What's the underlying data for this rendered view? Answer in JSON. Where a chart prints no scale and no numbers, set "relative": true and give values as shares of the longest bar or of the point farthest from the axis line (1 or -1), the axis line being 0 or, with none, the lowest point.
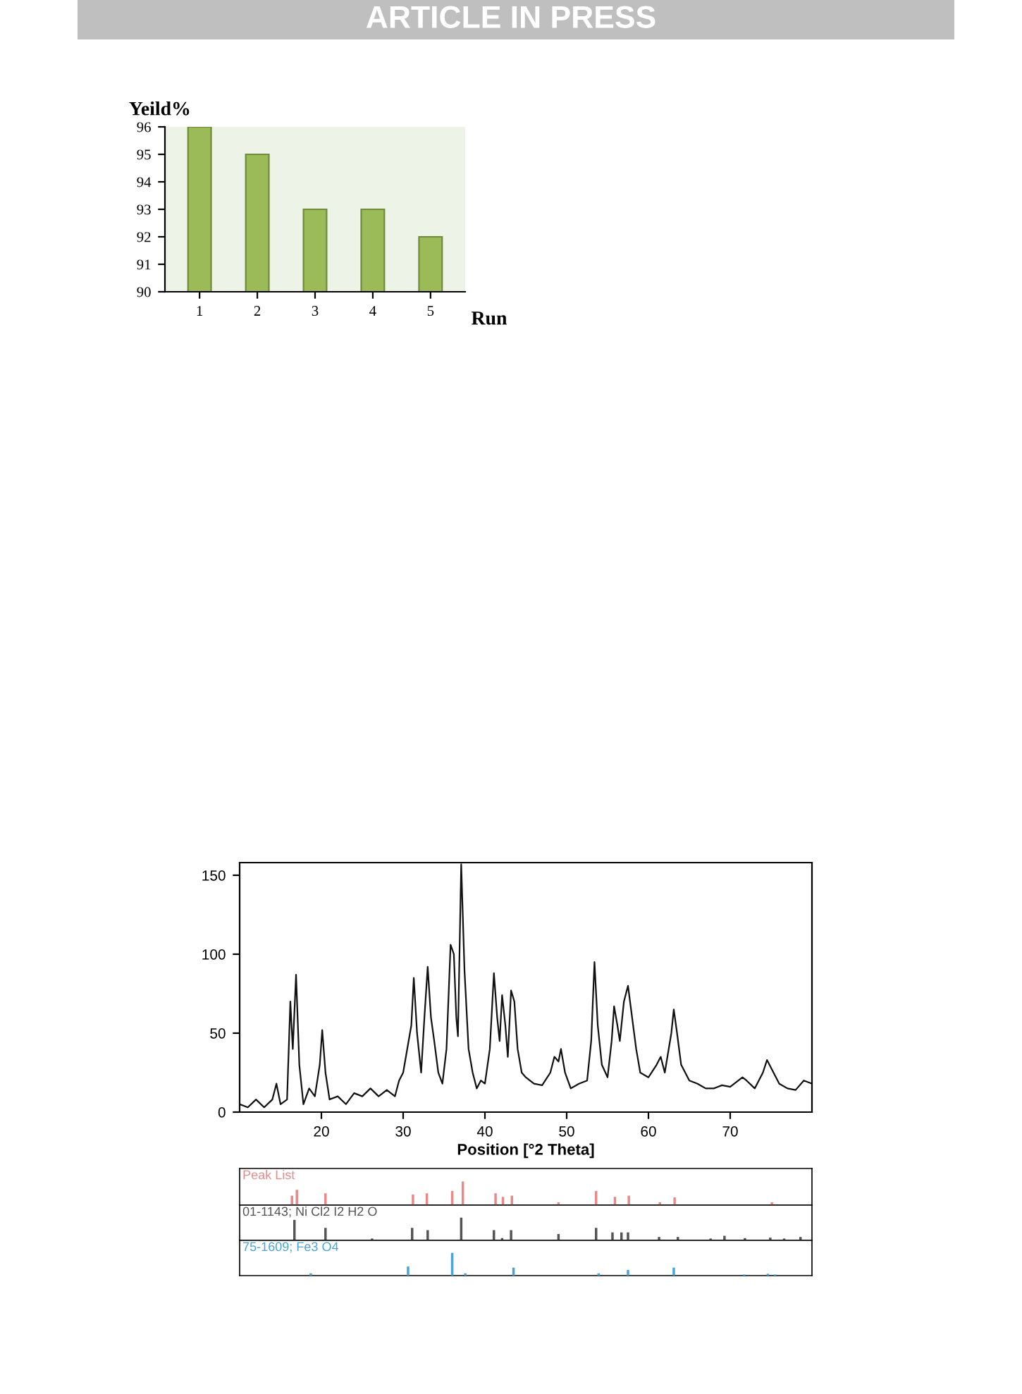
{
  "chart_data": [
    {
      "type": "bar",
      "ylabel": "Yeild%",
      "xlabel": "Run",
      "annotations": [
        "ARTICLE IN PRESS"
      ],
      "categories": [
        "1",
        "2",
        "3",
        "4",
        "5"
      ],
      "values": [
        96,
        95,
        93,
        93,
        92
      ],
      "color": "#9bbb59",
      "ylim": [
        90,
        96
      ],
      "yticks": [
        90,
        91,
        92,
        93,
        94,
        95,
        96
      ],
      "grid": false
    },
    {
      "type": "line",
      "xlabel": "Position [°2 Theta]",
      "color": "#111111",
      "xlim": [
        10,
        80
      ],
      "ylim": [
        0,
        158
      ],
      "xticks": [
        20,
        30,
        40,
        50,
        60,
        70
      ],
      "yticks": [
        0,
        50,
        100,
        150
      ],
      "grid": false,
      "x": [
        10,
        11,
        12,
        13,
        14,
        14.5,
        15,
        15.8,
        16.2,
        16.5,
        16.9,
        17.3,
        17.8,
        18.5,
        19.2,
        19.8,
        20.1,
        20.5,
        21,
        22,
        23,
        24,
        25,
        26,
        27,
        28,
        29,
        29.5,
        30,
        30.5,
        31,
        31.3,
        31.7,
        32.2,
        32.6,
        33,
        33.4,
        33.8,
        34.3,
        34.8,
        35.3,
        35.8,
        36.2,
        36.5,
        36.7,
        37.1,
        37.5,
        38,
        38.5,
        39,
        39.5,
        40,
        40.6,
        41.1,
        41.5,
        41.8,
        42.1,
        42.5,
        42.8,
        43.2,
        43.6,
        44,
        44.5,
        45,
        46,
        47,
        48,
        48.5,
        49,
        49.3,
        49.8,
        50.5,
        51.5,
        52.5,
        53,
        53.4,
        53.8,
        54.3,
        55,
        55.5,
        55.8,
        56.2,
        56.5,
        57,
        57.5,
        58,
        58.5,
        59,
        60,
        61,
        61.5,
        62,
        62.8,
        63.1,
        63.5,
        64,
        65,
        66,
        67,
        68,
        69,
        70,
        71,
        71.5,
        72,
        73,
        74,
        74.5,
        75,
        76,
        77,
        78,
        79,
        80
      ],
      "values": [
        5,
        3,
        8,
        3,
        8,
        18,
        5,
        8,
        70,
        40,
        87,
        30,
        5,
        15,
        10,
        30,
        52,
        25,
        8,
        10,
        5,
        12,
        10,
        15,
        10,
        14,
        10,
        20,
        25,
        40,
        55,
        85,
        50,
        25,
        60,
        92,
        60,
        45,
        25,
        18,
        40,
        106,
        100,
        60,
        48,
        157,
        90,
        40,
        25,
        15,
        20,
        18,
        40,
        88,
        60,
        45,
        74,
        55,
        35,
        77,
        70,
        40,
        25,
        22,
        18,
        17,
        25,
        35,
        32,
        40,
        25,
        15,
        18,
        20,
        45,
        95,
        55,
        30,
        22,
        45,
        67,
        55,
        45,
        70,
        80,
        60,
        40,
        25,
        22,
        30,
        35,
        25,
        50,
        65,
        50,
        30,
        20,
        18,
        15,
        15,
        17,
        16,
        20,
        22,
        20,
        15,
        25,
        33,
        28,
        18,
        15,
        14,
        20,
        18
      ]
    },
    {
      "type": "bar",
      "relative": true,
      "xlim": [
        10,
        80
      ],
      "tick_labels": false,
      "grid": false,
      "series": [
        {
          "name": "Peak List",
          "color": "#e88a8a",
          "x": [
            16.4,
            17.0,
            20.5,
            31.2,
            32.9,
            36.0,
            37.3,
            41.3,
            42.2,
            43.3,
            49.0,
            53.6,
            55.9,
            57.6,
            61.4,
            63.2,
            75.1
          ],
          "values": [
            0.4,
            0.65,
            0.5,
            0.45,
            0.5,
            0.6,
            1,
            0.5,
            0.35,
            0.4,
            0.12,
            0.6,
            0.35,
            0.4,
            0.12,
            0.33,
            0.12
          ]
        }
      ]
    },
    {
      "type": "bar",
      "relative": true,
      "xlim": [
        10,
        80
      ],
      "tick_labels": false,
      "grid": false,
      "series": [
        {
          "name": "01-1143; Ni Cl2 I2 H2 O",
          "color": "#555555",
          "x": [
            16.7,
            20.5,
            26.2,
            31.1,
            33.0,
            37.1,
            41.1,
            42.1,
            43.2,
            49.0,
            53.6,
            55.6,
            56.7,
            57.5,
            61.3,
            63.6,
            67.6,
            69.3,
            71.8,
            74.9,
            76.6,
            78.6
          ],
          "values": [
            0.9,
            0.55,
            0.08,
            0.55,
            0.45,
            1,
            0.45,
            0.1,
            0.45,
            0.28,
            0.55,
            0.35,
            0.35,
            0.35,
            0.15,
            0.15,
            0.08,
            0.2,
            0.1,
            0.12,
            0.08,
            0.15
          ]
        }
      ]
    },
    {
      "type": "bar",
      "relative": true,
      "xlim": [
        10,
        80
      ],
      "tick_labels": false,
      "grid": false,
      "series": [
        {
          "name": "75-1609; Fe3 O4",
          "color": "#4aa3d8",
          "x": [
            18.7,
            30.6,
            36.0,
            37.6,
            43.5,
            53.9,
            57.5,
            63.1,
            71.7,
            74.6,
            75.5
          ],
          "values": [
            0.1,
            0.4,
            1,
            0.1,
            0.35,
            0.1,
            0.25,
            0.35,
            0.05,
            0.08,
            0.05
          ]
        }
      ]
    }
  ]
}
